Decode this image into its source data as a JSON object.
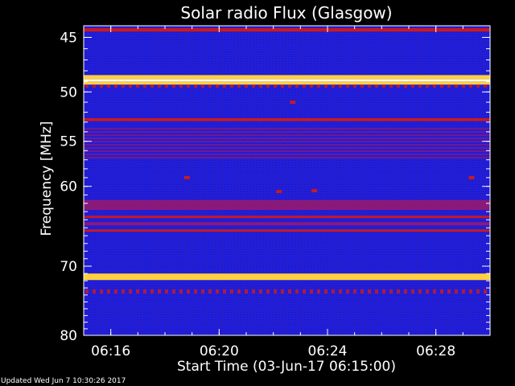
{
  "chart_data": {
    "type": "heatmap",
    "title": "Solar radio Flux (Glasgow)",
    "xlabel": "Start Time (03-Jun-17 06:15:00)",
    "ylabel": "Frequency [MHz]",
    "x_ticks": [
      "06:16",
      "06:20",
      "06:24",
      "06:28"
    ],
    "x_tick_minutes": [
      16,
      20,
      24,
      28
    ],
    "xlim_minutes": [
      15.0,
      30.0
    ],
    "y_ticks": [
      45,
      50,
      55,
      60,
      70,
      80
    ],
    "ylim": [
      44,
      80
    ],
    "y_scale": "log",
    "bands": [
      {
        "freq_from": 44.2,
        "freq_to": 44.5,
        "level": "red"
      },
      {
        "freq_from": 48.4,
        "freq_to": 48.8,
        "level": "yellow"
      },
      {
        "freq_from": 48.8,
        "freq_to": 49.0,
        "level": "white"
      },
      {
        "freq_from": 49.0,
        "freq_to": 49.3,
        "level": "yellow"
      },
      {
        "freq_from": 49.3,
        "freq_to": 49.6,
        "level": "magenta-dots"
      },
      {
        "freq_from": 52.6,
        "freq_to": 52.9,
        "level": "red"
      },
      {
        "freq_from": 53.6,
        "freq_to": 57.0,
        "level": "magenta-stripes"
      },
      {
        "freq_from": 61.6,
        "freq_to": 62.8,
        "level": "magenta"
      },
      {
        "freq_from": 63.5,
        "freq_to": 63.8,
        "level": "red"
      },
      {
        "freq_from": 64.3,
        "freq_to": 64.7,
        "level": "magenta"
      },
      {
        "freq_from": 65.2,
        "freq_to": 65.5,
        "level": "red"
      },
      {
        "freq_from": 71.3,
        "freq_to": 71.6,
        "level": "white"
      },
      {
        "freq_from": 71.0,
        "freq_to": 71.9,
        "level": "yellow"
      },
      {
        "freq_from": 73.2,
        "freq_to": 73.8,
        "level": "magenta-dots"
      }
    ],
    "bursts": [
      {
        "time_minutes": 18.8,
        "freq": 59.0
      },
      {
        "time_minutes": 22.2,
        "freq": 60.6
      },
      {
        "time_minutes": 22.7,
        "freq": 51.0
      },
      {
        "time_minutes": 23.5,
        "freq": 60.5
      },
      {
        "time_minutes": 29.3,
        "freq": 59.0
      }
    ],
    "colors": {
      "background": "#000000",
      "low": "#1a1ad8",
      "mid": "#3a2ac8",
      "magenta": "#8a1a7a",
      "red": "#c81a20",
      "yellow": "#ffd040",
      "white": "#ffffff"
    },
    "grid": false
  },
  "footer": {
    "updated": "Updated Wed Jun  7 10:30:26 2017"
  }
}
